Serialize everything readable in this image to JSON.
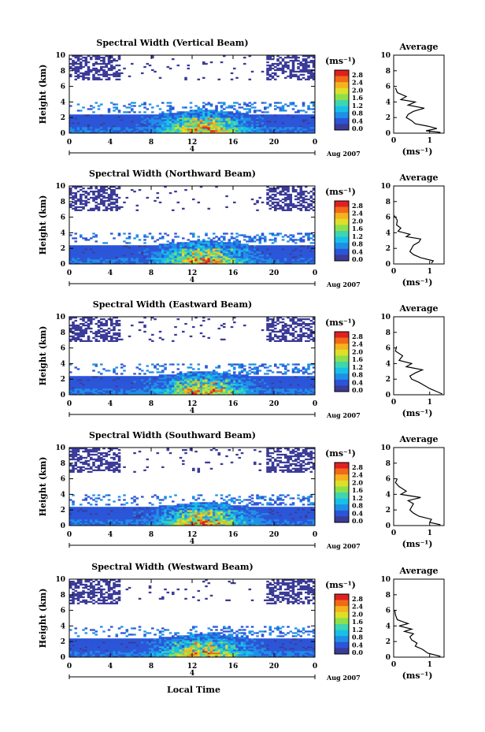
{
  "chart_data": {
    "type": "heatmap",
    "xlabel": "Local Time",
    "date_label": "Aug 2007",
    "day_label": "4",
    "x_ticks": [
      "0",
      "4",
      "8",
      "12",
      "16",
      "20",
      "0"
    ],
    "x_range_hours": [
      0,
      24
    ],
    "y_ticks": [
      "0",
      "2",
      "4",
      "6",
      "8",
      "10"
    ],
    "ylabel": "Height (km)",
    "ylim_km": [
      0,
      10
    ],
    "colorbar": {
      "unit": "(ms⁻¹)",
      "ticks": [
        "0.0",
        "0.4",
        "0.8",
        "1.2",
        "1.6",
        "2.0",
        "2.4",
        "2.8"
      ],
      "range": [
        0,
        2.8
      ],
      "colors": [
        "#3b3b98",
        "#2b55d8",
        "#1f8fe6",
        "#18c0e8",
        "#3ed6b0",
        "#8ee04a",
        "#dde02a",
        "#f5b21e",
        "#f06a18",
        "#e02020"
      ]
    },
    "profile": {
      "title": "Average",
      "xlabel": "(ms⁻¹)",
      "x_ticks": [
        "0",
        "1"
      ],
      "xlim": [
        0,
        1.4
      ],
      "y_ticks": [
        "0",
        "2",
        "4",
        "6",
        "8",
        "10"
      ]
    },
    "panels": [
      {
        "title": "Spectral Width (Vertical Beam)",
        "avg_profile": [
          {
            "h": 0.1,
            "w": 1.3
          },
          {
            "h": 0.3,
            "w": 0.9
          },
          {
            "h": 0.6,
            "w": 1.2
          },
          {
            "h": 0.9,
            "w": 0.95
          },
          {
            "h": 1.2,
            "w": 0.6
          },
          {
            "h": 1.6,
            "w": 0.5
          },
          {
            "h": 2.0,
            "w": 0.35
          },
          {
            "h": 2.4,
            "w": 0.4
          },
          {
            "h": 2.8,
            "w": 0.55
          },
          {
            "h": 3.2,
            "w": 0.85
          },
          {
            "h": 3.6,
            "w": 0.4
          },
          {
            "h": 4.0,
            "w": 0.6
          },
          {
            "h": 4.3,
            "w": 0.2
          },
          {
            "h": 4.7,
            "w": 0.35
          },
          {
            "h": 5.2,
            "w": 0.1
          },
          {
            "h": 5.8,
            "w": 0.05
          }
        ]
      },
      {
        "title": "Spectral Width (Northward Beam)",
        "avg_profile": [
          {
            "h": 0.1,
            "w": 1.05
          },
          {
            "h": 0.4,
            "w": 1.1
          },
          {
            "h": 0.8,
            "w": 0.75
          },
          {
            "h": 1.2,
            "w": 0.55
          },
          {
            "h": 1.6,
            "w": 0.45
          },
          {
            "h": 2.0,
            "w": 0.5
          },
          {
            "h": 2.4,
            "w": 0.55
          },
          {
            "h": 2.8,
            "w": 0.7
          },
          {
            "h": 3.2,
            "w": 0.75
          },
          {
            "h": 3.5,
            "w": 0.35
          },
          {
            "h": 3.8,
            "w": 0.45
          },
          {
            "h": 4.2,
            "w": 0.12
          },
          {
            "h": 4.6,
            "w": 0.2
          },
          {
            "h": 5.0,
            "w": 0.08
          },
          {
            "h": 5.6,
            "w": 0.1
          },
          {
            "h": 6.2,
            "w": 0.02
          }
        ]
      },
      {
        "title": "Spectral Width (Eastward Beam)",
        "avg_profile": [
          {
            "h": 0.1,
            "w": 1.35
          },
          {
            "h": 0.4,
            "w": 1.2
          },
          {
            "h": 0.8,
            "w": 1.0
          },
          {
            "h": 1.2,
            "w": 0.85
          },
          {
            "h": 1.6,
            "w": 0.7
          },
          {
            "h": 2.0,
            "w": 0.5
          },
          {
            "h": 2.4,
            "w": 0.45
          },
          {
            "h": 2.8,
            "w": 0.6
          },
          {
            "h": 3.2,
            "w": 0.8
          },
          {
            "h": 3.6,
            "w": 0.35
          },
          {
            "h": 4.0,
            "w": 0.5
          },
          {
            "h": 4.4,
            "w": 0.15
          },
          {
            "h": 5.0,
            "w": 0.25
          },
          {
            "h": 5.6,
            "w": 0.05
          },
          {
            "h": 6.2,
            "w": 0.08
          }
        ]
      },
      {
        "title": "Spectral Width (Southward Beam)",
        "avg_profile": [
          {
            "h": 0.1,
            "w": 1.3
          },
          {
            "h": 0.4,
            "w": 1.0
          },
          {
            "h": 0.8,
            "w": 1.05
          },
          {
            "h": 1.2,
            "w": 0.7
          },
          {
            "h": 1.6,
            "w": 0.55
          },
          {
            "h": 2.0,
            "w": 0.45
          },
          {
            "h": 2.4,
            "w": 0.5
          },
          {
            "h": 2.8,
            "w": 0.55
          },
          {
            "h": 3.2,
            "w": 0.4
          },
          {
            "h": 3.6,
            "w": 0.75
          },
          {
            "h": 4.0,
            "w": 0.2
          },
          {
            "h": 4.4,
            "w": 0.35
          },
          {
            "h": 5.0,
            "w": 0.15
          },
          {
            "h": 5.5,
            "w": 0.05
          },
          {
            "h": 6.0,
            "w": 0.1
          }
        ]
      },
      {
        "title": "Spectral Width (Westward Beam)",
        "avg_profile": [
          {
            "h": 0.1,
            "w": 1.3
          },
          {
            "h": 0.5,
            "w": 0.95
          },
          {
            "h": 1.0,
            "w": 0.8
          },
          {
            "h": 1.4,
            "w": 0.6
          },
          {
            "h": 1.8,
            "w": 0.65
          },
          {
            "h": 2.2,
            "w": 0.5
          },
          {
            "h": 2.6,
            "w": 0.45
          },
          {
            "h": 3.0,
            "w": 0.55
          },
          {
            "h": 3.3,
            "w": 0.3
          },
          {
            "h": 3.6,
            "w": 0.5
          },
          {
            "h": 4.0,
            "w": 0.15
          },
          {
            "h": 4.3,
            "w": 0.4
          },
          {
            "h": 4.8,
            "w": 0.1
          },
          {
            "h": 5.4,
            "w": 0.05
          },
          {
            "h": 6.0,
            "w": 0.03
          }
        ]
      }
    ]
  }
}
